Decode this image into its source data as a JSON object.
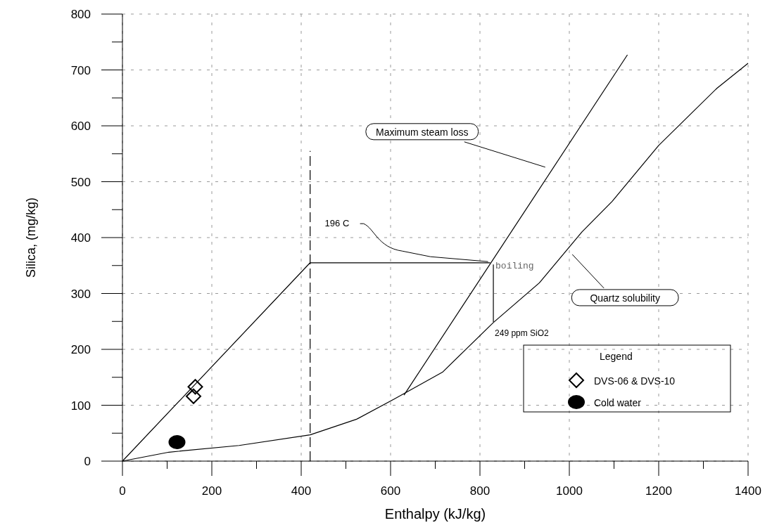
{
  "chart_data": {
    "type": "line",
    "xlabel": "Enthalpy (kJ/kg)",
    "ylabel": "Silica, (mg/kg)",
    "legend_title": "Legend",
    "legend": "bottom right",
    "grid": true,
    "xlim": [
      0,
      1400
    ],
    "ylim": [
      0,
      800
    ],
    "xticks": [
      0,
      {
        "value": 100,
        "label": null
      },
      200,
      {
        "value": 300,
        "label": null
      },
      400,
      {
        "value": 500,
        "label": null
      },
      600,
      {
        "value": 700,
        "label": null
      },
      800,
      {
        "value": 900,
        "label": null
      },
      1000,
      {
        "value": 1100,
        "label": null
      },
      1200,
      {
        "value": 1300,
        "label": null
      },
      1400
    ],
    "yticks": [
      0,
      {
        "value": 50,
        "label": null
      },
      100,
      {
        "value": 150,
        "label": null
      },
      200,
      {
        "value": 250,
        "label": null
      },
      300,
      {
        "value": 350,
        "label": null
      },
      400,
      {
        "value": 450,
        "label": null
      },
      500,
      {
        "value": 550,
        "label": null
      },
      600,
      {
        "value": 650,
        "label": null
      },
      700,
      {
        "value": 750,
        "label": null
      },
      800
    ],
    "series": [
      {
        "color": "#000000",
        "x": [
          0,
          420,
          823
        ],
        "values": [
          0,
          355,
          355
        ]
      },
      {
        "color": "#000000",
        "line_style": "dashed",
        "x": [
          420,
          420
        ],
        "values": [
          0,
          555
        ]
      },
      {
        "color": "#000000",
        "x": [
          830,
          830
        ],
        "values": [
          352,
          249
        ]
      },
      {
        "name": "Maximum steam loss",
        "color": "#000000",
        "x": [
          630,
          1130
        ],
        "values": [
          118,
          727
        ]
      },
      {
        "name": "Quartz solubility",
        "color": "#000000",
        "x": [
          0,
          104,
          261,
          420,
          524,
          608,
          716,
          830,
          933,
          1028,
          1096,
          1200,
          1330,
          1400
        ],
        "values": [
          0,
          16,
          28,
          47,
          75,
          111,
          159,
          248,
          319,
          410,
          465,
          565,
          667,
          712
        ]
      },
      {
        "type": "scatter",
        "name": "DVS-06 & DVS-10",
        "color": "#000000",
        "marker": "diamond",
        "x": [
          163,
          159
        ],
        "values": [
          133,
          116
        ]
      },
      {
        "type": "scatter",
        "name": "Cold water",
        "color": "#000000",
        "marker": "circle",
        "x": [
          122
        ],
        "values": [
          34
        ]
      }
    ],
    "annotations": [
      {
        "text": "196 C",
        "x": 823,
        "y": 357
      },
      "boiling",
      "249 ppm SiO2"
    ]
  }
}
